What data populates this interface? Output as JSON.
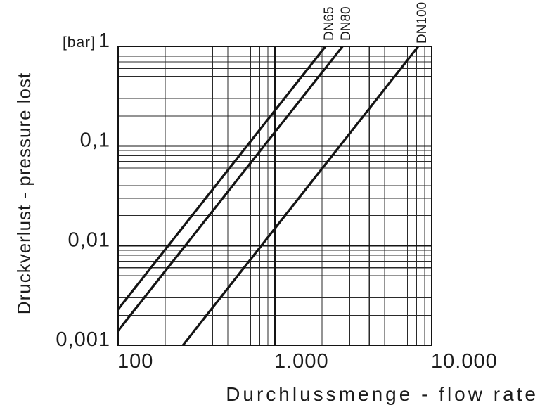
{
  "page": {
    "background": "#ffffff",
    "ink": "#1c1c1c"
  },
  "chart_data": {
    "type": "line",
    "scale": "log-log",
    "grid": "full log minor + major grid",
    "legend_position": "labels rotated at top line exits",
    "x_axis": {
      "label": "Durchlussmenge - flow rate",
      "scale": "log",
      "min": 100,
      "max": 10000,
      "tick_labels": [
        "100",
        "1.000",
        "10.000"
      ],
      "tick_values": [
        100,
        1000,
        10000
      ]
    },
    "y_axis": {
      "label": "Druckverlust - pressure lost",
      "unit": "[bar]",
      "scale": "log",
      "min": 0.001,
      "max": 1,
      "tick_labels": [
        "1",
        "0,1",
        "0,01",
        "0,001"
      ],
      "tick_values": [
        1,
        0.1,
        0.01,
        0.001
      ]
    },
    "series": [
      {
        "name": "DN65",
        "points": [
          [
            100,
            0.0023
          ],
          [
            2100,
            1
          ]
        ]
      },
      {
        "name": "DN80",
        "points": [
          [
            100,
            0.0014
          ],
          [
            2700,
            1
          ]
        ]
      },
      {
        "name": "DN100",
        "points": [
          [
            259,
            0.001
          ],
          [
            8200,
            1
          ]
        ]
      }
    ],
    "line_color": "#141414",
    "grid_color": "#2a2a2a"
  }
}
